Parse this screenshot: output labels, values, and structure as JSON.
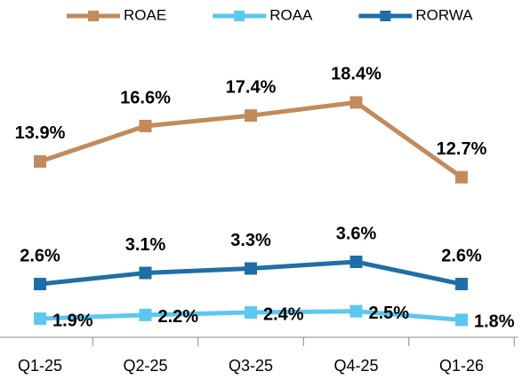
{
  "chart_data": {
    "type": "line",
    "categories": [
      "Q1-25",
      "Q2-25",
      "Q3-25",
      "Q4-25",
      "Q1-26"
    ],
    "legend": "top",
    "series": [
      {
        "name": "ROAE",
        "color": "#c28b5c",
        "values": [
          13.9,
          16.6,
          17.4,
          18.4,
          12.7
        ],
        "value_labels": [
          "13.9%",
          "16.6%",
          "17.4%",
          "18.4%",
          "12.7%"
        ],
        "ylim": [
          0.5,
          23.5
        ],
        "label_position": "above"
      },
      {
        "name": "ROAA",
        "color": "#5cc8f0",
        "values": [
          1.9,
          2.2,
          2.4,
          2.5,
          1.8
        ],
        "value_labels": [
          "1.9%",
          "2.2%",
          "2.4%",
          "2.5%",
          "1.8%"
        ],
        "ylim": [
          0.4,
          24.7
        ],
        "label_position": "right"
      },
      {
        "name": "RORWA",
        "color": "#1f6ea6",
        "values": [
          2.6,
          3.1,
          3.3,
          3.6,
          2.6
        ],
        "value_labels": [
          "2.6%",
          "3.1%",
          "3.3%",
          "3.6%",
          "2.6%"
        ],
        "ylim": [
          0.2,
          13.8
        ],
        "label_position": "above"
      }
    ]
  }
}
